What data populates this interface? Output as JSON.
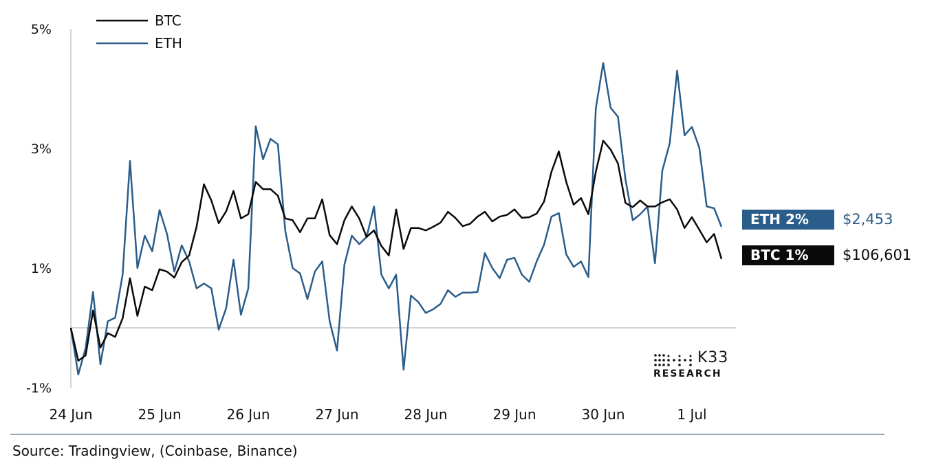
{
  "chart_data": {
    "type": "line",
    "title": "",
    "xlabel": "",
    "ylabel": "",
    "ylim": [
      -1,
      5
    ],
    "y_ticks": [
      "5%",
      "3%",
      "1%",
      "-1%"
    ],
    "y_tick_values": [
      5,
      3,
      1,
      -1
    ],
    "x_ticks": [
      "24 Jun",
      "25 Jun",
      "26 Jun",
      "27 Jun",
      "28 Jun",
      "29 Jun",
      "30 Jun",
      "1 Jul"
    ],
    "zero_line": true,
    "grid": false,
    "legend_placement": "top-left",
    "x": [
      "24 Jun 00:00",
      "24 Jun 02:00",
      "24 Jun 04:00",
      "24 Jun 06:00",
      "24 Jun 08:00",
      "24 Jun 10:00",
      "24 Jun 12:00",
      "24 Jun 14:00",
      "24 Jun 16:00",
      "24 Jun 18:00",
      "24 Jun 20:00",
      "24 Jun 22:00",
      "25 Jun 00:00",
      "25 Jun 02:00",
      "25 Jun 04:00",
      "25 Jun 06:00",
      "25 Jun 08:00",
      "25 Jun 10:00",
      "25 Jun 12:00",
      "25 Jun 14:00",
      "25 Jun 16:00",
      "25 Jun 18:00",
      "25 Jun 20:00",
      "25 Jun 22:00",
      "26 Jun 00:00",
      "26 Jun 02:00",
      "26 Jun 04:00",
      "26 Jun 06:00",
      "26 Jun 08:00",
      "26 Jun 10:00",
      "26 Jun 12:00",
      "26 Jun 14:00",
      "26 Jun 16:00",
      "26 Jun 18:00",
      "26 Jun 20:00",
      "26 Jun 22:00",
      "27 Jun 00:00",
      "27 Jun 02:00",
      "27 Jun 04:00",
      "27 Jun 06:00",
      "27 Jun 08:00",
      "27 Jun 10:00",
      "27 Jun 12:00",
      "27 Jun 14:00",
      "27 Jun 16:00",
      "27 Jun 18:00",
      "27 Jun 20:00",
      "27 Jun 22:00",
      "28 Jun 00:00",
      "28 Jun 02:00",
      "28 Jun 04:00",
      "28 Jun 06:00",
      "28 Jun 08:00",
      "28 Jun 10:00",
      "28 Jun 12:00",
      "28 Jun 14:00",
      "28 Jun 16:00",
      "28 Jun 18:00",
      "28 Jun 20:00",
      "28 Jun 22:00",
      "29 Jun 00:00",
      "29 Jun 02:00",
      "29 Jun 04:00",
      "29 Jun 06:00",
      "29 Jun 08:00",
      "29 Jun 10:00",
      "29 Jun 12:00",
      "29 Jun 14:00",
      "29 Jun 16:00",
      "29 Jun 18:00",
      "29 Jun 20:00",
      "29 Jun 22:00",
      "30 Jun 00:00",
      "30 Jun 02:00",
      "30 Jun 04:00",
      "30 Jun 06:00",
      "30 Jun 08:00",
      "30 Jun 10:00",
      "30 Jun 12:00",
      "30 Jun 14:00",
      "30 Jun 16:00",
      "30 Jun 18:00",
      "30 Jun 20:00",
      "30 Jun 22:00",
      "1 Jul 00:00",
      "1 Jul 02:00",
      "1 Jul 04:00",
      "1 Jul 06:00",
      "1 Jul 08:00"
    ],
    "series": [
      {
        "name": "BTC",
        "color": "#0a0a0a",
        "values": [
          0.0,
          -0.55,
          -0.46,
          0.29,
          -0.33,
          -0.09,
          -0.15,
          0.16,
          0.83,
          0.2,
          0.69,
          0.63,
          0.98,
          0.94,
          0.84,
          1.1,
          1.21,
          1.69,
          2.4,
          2.13,
          1.75,
          1.95,
          2.29,
          1.83,
          1.9,
          2.44,
          2.32,
          2.32,
          2.21,
          1.83,
          1.8,
          1.6,
          1.83,
          1.83,
          2.15,
          1.55,
          1.4,
          1.8,
          2.03,
          1.83,
          1.52,
          1.63,
          1.37,
          1.21,
          1.98,
          1.32,
          1.67,
          1.67,
          1.63,
          1.69,
          1.76,
          1.94,
          1.84,
          1.7,
          1.74,
          1.86,
          1.94,
          1.78,
          1.86,
          1.89,
          1.98,
          1.84,
          1.85,
          1.91,
          2.11,
          2.61,
          2.95,
          2.44,
          2.06,
          2.17,
          1.9,
          2.61,
          3.13,
          2.98,
          2.75,
          2.09,
          2.02,
          2.13,
          2.03,
          2.03,
          2.1,
          2.15,
          1.98,
          1.67,
          1.85,
          1.64,
          1.43,
          1.57,
          1.15
        ]
      },
      {
        "name": "ETH",
        "color": "#2b5d8a",
        "values": [
          0.0,
          -0.78,
          -0.34,
          0.6,
          -0.61,
          0.11,
          0.17,
          0.89,
          2.79,
          1.0,
          1.54,
          1.28,
          1.97,
          1.57,
          0.94,
          1.38,
          1.11,
          0.66,
          0.74,
          0.66,
          -0.03,
          0.33,
          1.14,
          0.22,
          0.66,
          3.37,
          2.82,
          3.16,
          3.07,
          1.62,
          1.0,
          0.91,
          0.48,
          0.94,
          1.11,
          0.11,
          -0.38,
          1.06,
          1.54,
          1.4,
          1.52,
          2.03,
          0.89,
          0.66,
          0.89,
          -0.7,
          0.54,
          0.43,
          0.25,
          0.31,
          0.4,
          0.63,
          0.52,
          0.59,
          0.59,
          0.6,
          1.25,
          1.0,
          0.83,
          1.14,
          1.17,
          0.89,
          0.77,
          1.11,
          1.39,
          1.86,
          1.92,
          1.23,
          1.02,
          1.11,
          0.85,
          3.67,
          4.43,
          3.68,
          3.53,
          2.49,
          1.8,
          1.9,
          2.03,
          1.08,
          2.63,
          3.09,
          4.3,
          3.22,
          3.36,
          3.01,
          2.03,
          2.0,
          1.69
        ]
      }
    ]
  },
  "end_labels": [
    {
      "tag": "ETH 2%",
      "price": "$2,453",
      "color": "#2b5d8a"
    },
    {
      "tag": "BTC 1%",
      "price": "$106,601",
      "color": "#0a0a0a"
    }
  ],
  "logo": {
    "name": "K33",
    "subtitle": "RESEARCH"
  },
  "source": "Source: Tradingview, (Coinbase, Binance)"
}
